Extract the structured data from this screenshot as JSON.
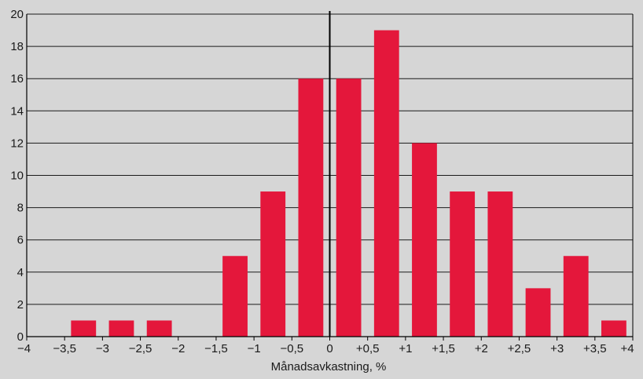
{
  "chart_data": {
    "type": "bar",
    "title": "",
    "xlabel": "Månadsavkastning, %",
    "ylabel": "",
    "xlim": [
      -4,
      4
    ],
    "ylim": [
      0,
      20
    ],
    "grid": "horizontal",
    "x_ticks": [
      {
        "value": -4,
        "label": "−4"
      },
      {
        "value": -3.5,
        "label": "−3,5"
      },
      {
        "value": -3,
        "label": "−3"
      },
      {
        "value": -2.5,
        "label": "−2,5"
      },
      {
        "value": -2,
        "label": "−2"
      },
      {
        "value": -1.5,
        "label": "−1,5"
      },
      {
        "value": -1,
        "label": "−1"
      },
      {
        "value": -0.5,
        "label": "−0,5"
      },
      {
        "value": 0,
        "label": "0"
      },
      {
        "value": 0.5,
        "label": "+0,5"
      },
      {
        "value": 1,
        "label": "+1"
      },
      {
        "value": 1.5,
        "label": "+1,5"
      },
      {
        "value": 2,
        "label": "+2"
      },
      {
        "value": 2.5,
        "label": "+2,5"
      },
      {
        "value": 3,
        "label": "+3"
      },
      {
        "value": 3.5,
        "label": "+3,5"
      },
      {
        "value": 4,
        "label": "+4"
      }
    ],
    "y_ticks": [
      0,
      2,
      4,
      6,
      8,
      10,
      12,
      14,
      16,
      18,
      20
    ],
    "bin_width": 0.5,
    "bins": [
      {
        "from": -3.5,
        "to": -3.0,
        "value": 1
      },
      {
        "from": -3.0,
        "to": -2.5,
        "value": 1
      },
      {
        "from": -2.5,
        "to": -2.0,
        "value": 1
      },
      {
        "from": -1.5,
        "to": -1.0,
        "value": 5
      },
      {
        "from": -1.0,
        "to": -0.5,
        "value": 9
      },
      {
        "from": -0.5,
        "to": 0.0,
        "value": 16
      },
      {
        "from": 0.0,
        "to": 0.5,
        "value": 16
      },
      {
        "from": 0.5,
        "to": 1.0,
        "value": 19
      },
      {
        "from": 1.0,
        "to": 1.5,
        "value": 12
      },
      {
        "from": 1.5,
        "to": 2.0,
        "value": 9
      },
      {
        "from": 2.0,
        "to": 2.5,
        "value": 9
      },
      {
        "from": 2.5,
        "to": 3.0,
        "value": 3
      },
      {
        "from": 3.0,
        "to": 3.5,
        "value": 5
      },
      {
        "from": 3.5,
        "to": 4.0,
        "value": 1
      }
    ],
    "colors": {
      "bar": "#e4173b",
      "background": "#d6d6d6",
      "grid": "#1a1a1a",
      "zero_line": "#000000"
    }
  }
}
